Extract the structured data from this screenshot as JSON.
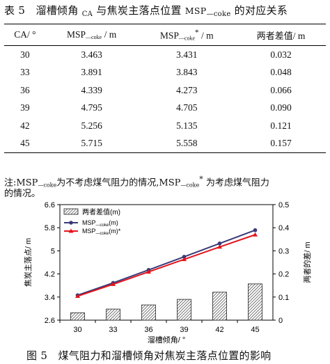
{
  "table": {
    "caption_prefix": "表",
    "caption_num": "5",
    "caption_text": "溜槽倾角",
    "caption_ca": "CA",
    "caption_mid": "与焦炭主落点位置",
    "caption_msp": "MSP",
    "caption_sub": "—coke",
    "caption_end": "的对应关系",
    "headers": {
      "ca": "CA/ °",
      "msp_main": "MSP",
      "msp_sub": "—coke",
      "msp_unit": "/ m",
      "msp_star_main": "MSP",
      "msp_star_sub": "—coke",
      "msp_star_sup": "*",
      "msp_star_unit": "/ m",
      "diff": "两者差值",
      "diff_unit": "/ m"
    },
    "rows": [
      {
        "ca": "30",
        "msp": "3.463",
        "msp_star": "3.431",
        "diff": "0.032"
      },
      {
        "ca": "33",
        "msp": "3.891",
        "msp_star": "3.843",
        "diff": "0.048"
      },
      {
        "ca": "36",
        "msp": "4.339",
        "msp_star": "4.273",
        "diff": "0.066"
      },
      {
        "ca": "39",
        "msp": "4.795",
        "msp_star": "4.705",
        "diff": "0.090"
      },
      {
        "ca": "42",
        "msp": "5.256",
        "msp_star": "5.135",
        "diff": "0.121"
      },
      {
        "ca": "45",
        "msp": "5.715",
        "msp_star": "5.558",
        "diff": "0.157"
      }
    ]
  },
  "note": {
    "prefix": "注:",
    "msp": "MSP",
    "sub": "—coke",
    "text1": "为不考虑煤气阻力的情况,",
    "msp2": "MSP",
    "sub2": "—coke",
    "sup2": "*",
    "text2": "为考虑煤气阻力",
    "line2": "的情况。"
  },
  "chart_data": {
    "type": "bar",
    "categories": [
      "30",
      "33",
      "36",
      "39",
      "42",
      "45"
    ],
    "xlabel": "溜槽倾角/ °",
    "ylabel": "焦炭主落点/ m",
    "y2label": "两者的差/ m",
    "ylim": [
      2.6,
      6.6
    ],
    "yticks": [
      "6.6",
      "5.8",
      "5",
      "4.2",
      "3.4",
      "2.6"
    ],
    "y2lim": [
      0,
      0.5
    ],
    "y2ticks": [
      "0.5",
      "0.4",
      "0.3",
      "0.2",
      "0.1",
      "0"
    ],
    "grid": false,
    "legend_position": "top-left",
    "series": [
      {
        "name": "两者差值(m)",
        "type": "bar",
        "axis": "right",
        "values": [
          0.032,
          0.048,
          0.066,
          0.09,
          0.121,
          0.157
        ]
      },
      {
        "name": "MSP",
        "legend_sub": "—coke",
        "legend_unit": "(m)",
        "type": "line",
        "axis": "left",
        "color": "#3a3a78",
        "values": [
          3.463,
          3.891,
          4.339,
          4.795,
          5.256,
          5.715
        ]
      },
      {
        "name": "MSP",
        "legend_sub": "—coke",
        "legend_unit": "(m)*",
        "type": "line",
        "axis": "left",
        "color": "#e3141b",
        "values": [
          3.431,
          3.843,
          4.273,
          4.705,
          5.135,
          5.558
        ]
      }
    ]
  },
  "figure": {
    "caption_prefix": "图",
    "caption_num": "5",
    "caption_text": "煤气阻力和溜槽倾角对焦炭主落点位置的影响"
  }
}
